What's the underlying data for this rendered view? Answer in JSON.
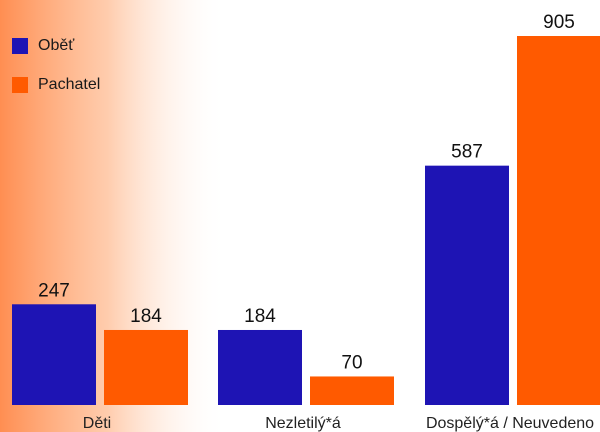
{
  "chart_data": {
    "type": "bar",
    "categories": [
      "Děti",
      "Nezletilý*á",
      "Dospělý*á / Neuvedeno"
    ],
    "series": [
      {
        "name": "Oběť",
        "color": "#1e14b4",
        "values": [
          247,
          184,
          587
        ]
      },
      {
        "name": "Pachatel",
        "color": "#ff5a00",
        "values": [
          184,
          70,
          905
        ]
      }
    ],
    "ylim": [
      0,
      905
    ],
    "grid": false,
    "legend_position": "top-left"
  }
}
